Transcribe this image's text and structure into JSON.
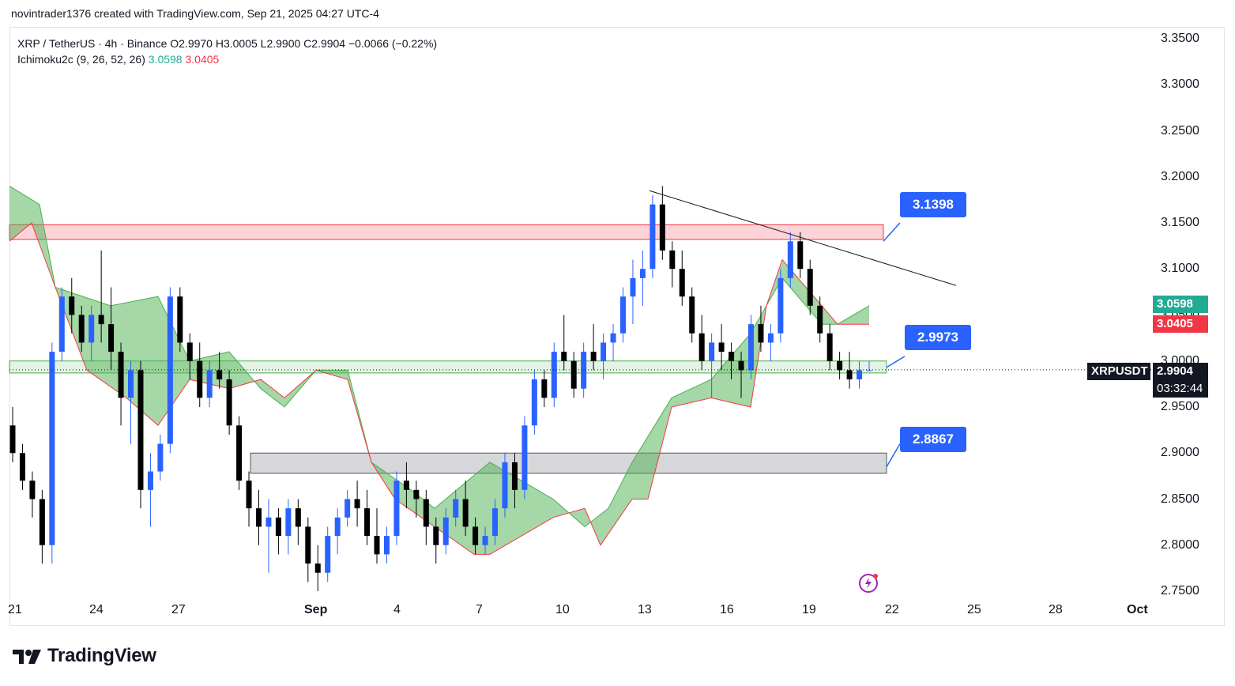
{
  "header": {
    "caption": "novintrader1376 created with TradingView.com, Sep 21, 2025 04:27 UTC-4"
  },
  "legend": {
    "symbol_line": "XRP / TetherUS · 4h · Binance",
    "ohlc": "O2.9970 H3.0005 L2.9900 C2.9904 −0.0066 (−0.22%)",
    "indicator_name": "Ichimoku2c (9, 26, 52, 26)",
    "indicator_value_1": "3.0598",
    "indicator_value_2": "3.0405"
  },
  "price_axis": [
    "3.3500",
    "3.3000",
    "3.2500",
    "3.2000",
    "3.1500",
    "3.1000",
    "3.0500",
    "3.0000",
    "2.9500",
    "2.9000",
    "2.8500",
    "2.8000",
    "2.7500"
  ],
  "time_axis": [
    "21",
    "24",
    "27",
    "Sep",
    "4",
    "7",
    "10",
    "13",
    "16",
    "19",
    "22",
    "25",
    "28",
    "Oct"
  ],
  "price_tags": {
    "span_a": "3.0598",
    "span_b": "3.0405",
    "symbol": "XRPUSDT",
    "last_price": "2.9904",
    "countdown": "03:32:44"
  },
  "callouts": {
    "resistance": "3.1398",
    "mid": "2.9973",
    "support": "2.8867"
  },
  "colors": {
    "up_candle": "#2962ff",
    "down_candle": "#000000",
    "cloud": "#4caf50",
    "resistance_zone": "#f7c6c9",
    "support_zone": "#d1d4dc",
    "green_tag": "#22ab94",
    "red_tag": "#f23645",
    "callout": "#2962ff"
  },
  "brand": {
    "name": "TradingView"
  },
  "chart_data": {
    "type": "candlestick",
    "ylim": [
      2.75,
      3.35
    ],
    "zones": [
      {
        "name": "resistance",
        "low": 3.132,
        "high": 3.148
      },
      {
        "name": "mid",
        "low": 2.987,
        "high": 3.0
      },
      {
        "name": "support",
        "low": 2.878,
        "high": 2.9
      }
    ],
    "trendline": {
      "from": [
        13.1,
        3.185
      ],
      "to": [
        24.8,
        3.082
      ]
    },
    "candles": [
      [
        2.93,
        2.95,
        2.89,
        2.9
      ],
      [
        2.9,
        2.91,
        2.86,
        2.87
      ],
      [
        2.87,
        2.88,
        2.83,
        2.85
      ],
      [
        2.85,
        2.86,
        2.78,
        2.8
      ],
      [
        2.8,
        3.02,
        2.78,
        3.01
      ],
      [
        3.01,
        3.08,
        3.0,
        3.07
      ],
      [
        3.07,
        3.09,
        3.03,
        3.05
      ],
      [
        3.05,
        3.06,
        3.01,
        3.02
      ],
      [
        3.02,
        3.06,
        3.0,
        3.05
      ],
      [
        3.05,
        3.12,
        3.02,
        3.04
      ],
      [
        3.04,
        3.08,
        2.99,
        3.01
      ],
      [
        3.01,
        3.02,
        2.93,
        2.96
      ],
      [
        2.96,
        3.0,
        2.91,
        2.99
      ],
      [
        2.99,
        3.0,
        2.84,
        2.86
      ],
      [
        2.86,
        2.9,
        2.82,
        2.88
      ],
      [
        2.88,
        2.92,
        2.87,
        2.91
      ],
      [
        2.91,
        3.08,
        2.9,
        3.07
      ],
      [
        3.07,
        3.08,
        3.01,
        3.02
      ],
      [
        3.02,
        3.03,
        2.98,
        3.0
      ],
      [
        3.0,
        3.02,
        2.95,
        2.96
      ],
      [
        2.96,
        3.0,
        2.95,
        2.99
      ],
      [
        2.99,
        3.01,
        2.97,
        2.98
      ],
      [
        2.98,
        2.99,
        2.92,
        2.93
      ],
      [
        2.93,
        2.94,
        2.86,
        2.87
      ],
      [
        2.87,
        2.88,
        2.82,
        2.84
      ],
      [
        2.84,
        2.86,
        2.8,
        2.82
      ],
      [
        2.82,
        2.85,
        2.77,
        2.83
      ],
      [
        2.83,
        2.84,
        2.79,
        2.81
      ],
      [
        2.81,
        2.85,
        2.79,
        2.84
      ],
      [
        2.84,
        2.85,
        2.8,
        2.82
      ],
      [
        2.82,
        2.83,
        2.76,
        2.78
      ],
      [
        2.78,
        2.8,
        2.75,
        2.77
      ],
      [
        2.77,
        2.82,
        2.76,
        2.81
      ],
      [
        2.81,
        2.84,
        2.79,
        2.83
      ],
      [
        2.83,
        2.86,
        2.82,
        2.85
      ],
      [
        2.85,
        2.87,
        2.82,
        2.84
      ],
      [
        2.84,
        2.86,
        2.8,
        2.81
      ],
      [
        2.81,
        2.84,
        2.78,
        2.79
      ],
      [
        2.79,
        2.82,
        2.78,
        2.81
      ],
      [
        2.81,
        2.88,
        2.8,
        2.87
      ],
      [
        2.87,
        2.89,
        2.84,
        2.86
      ],
      [
        2.86,
        2.87,
        2.83,
        2.85
      ],
      [
        2.85,
        2.86,
        2.8,
        2.82
      ],
      [
        2.82,
        2.83,
        2.78,
        2.8
      ],
      [
        2.8,
        2.84,
        2.79,
        2.83
      ],
      [
        2.83,
        2.86,
        2.82,
        2.85
      ],
      [
        2.85,
        2.87,
        2.81,
        2.82
      ],
      [
        2.82,
        2.83,
        2.79,
        2.8
      ],
      [
        2.8,
        2.82,
        2.79,
        2.81
      ],
      [
        2.81,
        2.85,
        2.8,
        2.84
      ],
      [
        2.84,
        2.9,
        2.83,
        2.89
      ],
      [
        2.89,
        2.9,
        2.84,
        2.86
      ],
      [
        2.86,
        2.94,
        2.85,
        2.93
      ],
      [
        2.93,
        2.99,
        2.92,
        2.98
      ],
      [
        2.98,
        2.99,
        2.95,
        2.96
      ],
      [
        2.96,
        3.02,
        2.95,
        3.01
      ],
      [
        3.01,
        3.05,
        2.99,
        3.0
      ],
      [
        3.0,
        3.01,
        2.96,
        2.97
      ],
      [
        2.97,
        3.02,
        2.96,
        3.01
      ],
      [
        3.01,
        3.04,
        2.99,
        3.0
      ],
      [
        3.0,
        3.03,
        2.98,
        3.02
      ],
      [
        3.02,
        3.04,
        3.0,
        3.03
      ],
      [
        3.03,
        3.08,
        3.02,
        3.07
      ],
      [
        3.07,
        3.11,
        3.04,
        3.09
      ],
      [
        3.09,
        3.12,
        3.06,
        3.1
      ],
      [
        3.1,
        3.18,
        3.09,
        3.17
      ],
      [
        3.17,
        3.19,
        3.11,
        3.12
      ],
      [
        3.12,
        3.13,
        3.08,
        3.1
      ],
      [
        3.1,
        3.12,
        3.06,
        3.07
      ],
      [
        3.07,
        3.08,
        3.02,
        3.03
      ],
      [
        3.03,
        3.05,
        2.99,
        3.0
      ],
      [
        3.0,
        3.03,
        2.96,
        3.02
      ],
      [
        3.02,
        3.04,
        2.99,
        3.01
      ],
      [
        3.01,
        3.02,
        2.98,
        3.0
      ],
      [
        3.0,
        3.01,
        2.96,
        2.99
      ],
      [
        2.99,
        3.05,
        2.98,
        3.04
      ],
      [
        3.04,
        3.06,
        3.01,
        3.02
      ],
      [
        3.02,
        3.04,
        3.0,
        3.03
      ],
      [
        3.03,
        3.1,
        3.02,
        3.09
      ],
      [
        3.09,
        3.14,
        3.08,
        3.13
      ],
      [
        3.13,
        3.14,
        3.09,
        3.1
      ],
      [
        3.1,
        3.11,
        3.05,
        3.06
      ],
      [
        3.06,
        3.07,
        3.02,
        3.03
      ],
      [
        3.03,
        3.04,
        2.99,
        3.0
      ],
      [
        3.0,
        3.01,
        2.98,
        2.99
      ],
      [
        2.99,
        3.01,
        2.97,
        2.98
      ],
      [
        2.98,
        3.0,
        2.97,
        2.99
      ],
      [
        2.99,
        3.0,
        2.99,
        2.99
      ]
    ]
  }
}
